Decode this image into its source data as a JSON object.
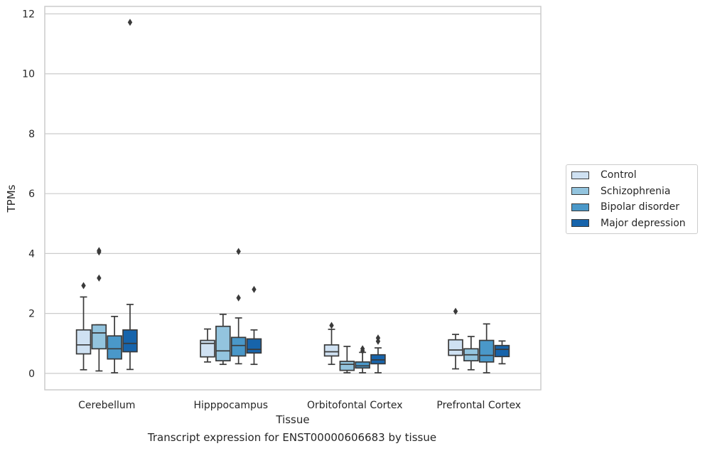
{
  "caption": "Transcript expression for ENST00000606683 by tissue",
  "legend": {
    "items": [
      {
        "label": "Control",
        "color": "#cfe1f2"
      },
      {
        "label": "Schizophrenia",
        "color": "#93c4de"
      },
      {
        "label": "Bipolar disorder",
        "color": "#4a98c9"
      },
      {
        "label": "Major depression",
        "color": "#1764ab"
      }
    ]
  },
  "chart_data": {
    "type": "box",
    "xlabel": "Tissue",
    "ylabel": "TPMs",
    "ylim": [
      -0.55,
      12.25
    ],
    "yticks": [
      0,
      2,
      4,
      6,
      8,
      10,
      12
    ],
    "grid": "horizontal",
    "legend_position": "right",
    "categories": [
      "Cerebellum",
      "Hipppocampus",
      "Orbitofontal Cortex",
      "Prefrontal Cortex"
    ],
    "series": [
      {
        "name": "Control",
        "color": "#cfe1f2",
        "boxes": [
          {
            "whislo": 0.12,
            "q1": 0.65,
            "median": 0.95,
            "q3": 1.45,
            "whishi": 2.55,
            "fliers": [
              2.93
            ]
          },
          {
            "whislo": 0.38,
            "q1": 0.55,
            "median": 1.0,
            "q3": 1.1,
            "whishi": 1.48,
            "fliers": []
          },
          {
            "whislo": 0.3,
            "q1": 0.58,
            "median": 0.72,
            "q3": 0.95,
            "whishi": 1.47,
            "fliers": [
              1.6
            ]
          },
          {
            "whislo": 0.15,
            "q1": 0.6,
            "median": 0.78,
            "q3": 1.12,
            "whishi": 1.3,
            "fliers": [
              2.07
            ]
          }
        ]
      },
      {
        "name": "Schizophrenia",
        "color": "#93c4de",
        "boxes": [
          {
            "whislo": 0.08,
            "q1": 0.82,
            "median": 1.35,
            "q3": 1.62,
            "whishi": 1.62,
            "fliers": [
              3.18,
              4.05,
              4.1
            ]
          },
          {
            "whislo": 0.3,
            "q1": 0.42,
            "median": 0.75,
            "q3": 1.57,
            "whishi": 1.97,
            "fliers": []
          },
          {
            "whislo": 0.02,
            "q1": 0.1,
            "median": 0.3,
            "q3": 0.4,
            "whishi": 0.9,
            "fliers": []
          },
          {
            "whislo": 0.12,
            "q1": 0.42,
            "median": 0.62,
            "q3": 0.82,
            "whishi": 1.23,
            "fliers": []
          }
        ]
      },
      {
        "name": "Bipolar disorder",
        "color": "#4a98c9",
        "boxes": [
          {
            "whislo": 0.02,
            "q1": 0.48,
            "median": 0.82,
            "q3": 1.25,
            "whishi": 1.9,
            "fliers": []
          },
          {
            "whislo": 0.32,
            "q1": 0.58,
            "median": 0.93,
            "q3": 1.2,
            "whishi": 1.85,
            "fliers": [
              2.52,
              4.07
            ]
          },
          {
            "whislo": 0.02,
            "q1": 0.18,
            "median": 0.25,
            "q3": 0.38,
            "whishi": 0.7,
            "fliers": [
              0.75,
              0.82
            ]
          },
          {
            "whislo": 0.02,
            "q1": 0.38,
            "median": 0.6,
            "q3": 1.1,
            "whishi": 1.65,
            "fliers": []
          }
        ]
      },
      {
        "name": "Major depression",
        "color": "#1764ab",
        "boxes": [
          {
            "whislo": 0.13,
            "q1": 0.72,
            "median": 1.0,
            "q3": 1.45,
            "whishi": 2.3,
            "fliers": [
              11.72
            ]
          },
          {
            "whislo": 0.3,
            "q1": 0.68,
            "median": 0.8,
            "q3": 1.15,
            "whishi": 1.45,
            "fliers": [
              2.8
            ]
          },
          {
            "whislo": 0.02,
            "q1": 0.32,
            "median": 0.45,
            "q3": 0.62,
            "whishi": 0.85,
            "fliers": [
              1.07,
              1.18
            ]
          },
          {
            "whislo": 0.32,
            "q1": 0.56,
            "median": 0.8,
            "q3": 0.93,
            "whishi": 1.08,
            "fliers": []
          }
        ]
      }
    ]
  }
}
